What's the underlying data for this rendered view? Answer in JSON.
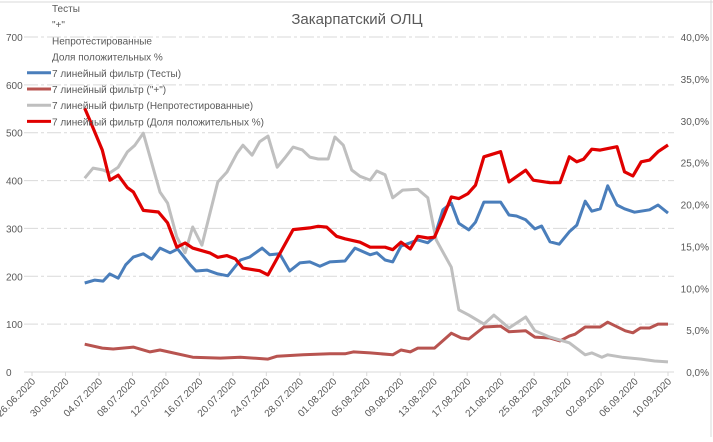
{
  "chart_data": {
    "type": "line",
    "title": "Закарпатский ОЛЦ",
    "x_unit": "days since 26.06.2020",
    "xlabel": "",
    "ylabel": "",
    "ylim": [
      0,
      700
    ],
    "y2lim": [
      0,
      40
    ],
    "y_ticks": [
      "0",
      "100",
      "200",
      "300",
      "400",
      "500",
      "600",
      "700"
    ],
    "y2_ticks": [
      "0,0%",
      "5,0%",
      "10,0%",
      "15,0%",
      "20,0%",
      "25,0%",
      "30,0%",
      "35,0%",
      "40,0%"
    ],
    "x_ticks": [
      "26.06.2020",
      "30.06.2020",
      "04.07.2020",
      "08.07.2020",
      "12.07.2020",
      "16.07.2020",
      "20.07.2020",
      "24.07.2020",
      "28.07.2020",
      "01.08.2020",
      "05.08.2020",
      "09.08.2020",
      "13.08.2020",
      "17.08.2020",
      "21.08.2020",
      "25.08.2020",
      "29.08.2020",
      "02.09.2020",
      "06.09.2020",
      "10.09.2020"
    ],
    "grid": true,
    "legend_position": "top-left",
    "legend": [
      {
        "label": "Тесты",
        "color": ""
      },
      {
        "label": "\"+\"",
        "color": ""
      },
      {
        "label": "Непротестированные",
        "color": ""
      },
      {
        "label": "Доля положительных %",
        "color": ""
      },
      {
        "label": "7 линейный фильтр (Тесты)",
        "color": "#4a7ebb"
      },
      {
        "label": "7 линейный фильтр (\"+\")",
        "color": "#b85450"
      },
      {
        "label": "7 линейный фильтр (Непротестированные)",
        "color": "#bfbfbf"
      },
      {
        "label": "7 линейный фильтр (Доля положительных %)",
        "color": "#e00000"
      }
    ],
    "series": [
      {
        "name": "7 линейный фильтр (Тесты)",
        "axis": "left",
        "color": "#4a7ebb",
        "points": [
          [
            6.3,
            186
          ],
          [
            7.5,
            192
          ],
          [
            8.5,
            190
          ],
          [
            9.3,
            205
          ],
          [
            10.3,
            196
          ],
          [
            11.2,
            224
          ],
          [
            12.1,
            240
          ],
          [
            13.3,
            247
          ],
          [
            14.3,
            236
          ],
          [
            15.3,
            259
          ],
          [
            16.5,
            249
          ],
          [
            17.4,
            257
          ],
          [
            18.9,
            224
          ],
          [
            19.6,
            211
          ],
          [
            20.9,
            213
          ],
          [
            22.2,
            205
          ],
          [
            23.4,
            201
          ],
          [
            24.9,
            234
          ],
          [
            26.0,
            240
          ],
          [
            27.5,
            259
          ],
          [
            28.4,
            245
          ],
          [
            29.6,
            247
          ],
          [
            30.8,
            211
          ],
          [
            32.0,
            228
          ],
          [
            33.2,
            230
          ],
          [
            34.4,
            221
          ],
          [
            35.6,
            230
          ],
          [
            37.4,
            232
          ],
          [
            38.6,
            259
          ],
          [
            40.4,
            245
          ],
          [
            41.2,
            249
          ],
          [
            42.2,
            234
          ],
          [
            43.1,
            230
          ],
          [
            44.1,
            263
          ],
          [
            45.2,
            270
          ],
          [
            46.1,
            276
          ],
          [
            47.3,
            270
          ],
          [
            48.1,
            282
          ],
          [
            49.1,
            339
          ],
          [
            50.1,
            353
          ],
          [
            51.0,
            311
          ],
          [
            52.2,
            297
          ],
          [
            53.0,
            313
          ],
          [
            54.0,
            355
          ],
          [
            56.0,
            355
          ],
          [
            57.0,
            328
          ],
          [
            57.9,
            326
          ],
          [
            59.0,
            318
          ],
          [
            60.1,
            299
          ],
          [
            60.9,
            305
          ],
          [
            61.9,
            272
          ],
          [
            63.0,
            267
          ],
          [
            64.2,
            293
          ],
          [
            65.1,
            307
          ],
          [
            66.1,
            357
          ],
          [
            66.9,
            336
          ],
          [
            67.9,
            341
          ],
          [
            68.8,
            389
          ],
          [
            69.9,
            349
          ],
          [
            70.8,
            341
          ],
          [
            72.0,
            334
          ],
          [
            73.8,
            339
          ],
          [
            74.8,
            349
          ],
          [
            76.0,
            332
          ]
        ]
      },
      {
        "name": "7 линейный фильтр (\"+\")",
        "axis": "left",
        "color": "#b85450",
        "points": [
          [
            6.3,
            58
          ],
          [
            8.4,
            50
          ],
          [
            9.7,
            48
          ],
          [
            12.1,
            52
          ],
          [
            14.1,
            42
          ],
          [
            15.3,
            46
          ],
          [
            19.2,
            31
          ],
          [
            22.5,
            29
          ],
          [
            24.9,
            31
          ],
          [
            28.2,
            27
          ],
          [
            29.3,
            33
          ],
          [
            32.4,
            36
          ],
          [
            35.6,
            38
          ],
          [
            37.4,
            38
          ],
          [
            38.4,
            42
          ],
          [
            40.4,
            40
          ],
          [
            43.1,
            36
          ],
          [
            44.1,
            46
          ],
          [
            45.2,
            42
          ],
          [
            46.1,
            50
          ],
          [
            48.1,
            50
          ],
          [
            50.1,
            81
          ],
          [
            51.3,
            71
          ],
          [
            52.2,
            69
          ],
          [
            54.0,
            94
          ],
          [
            56.0,
            96
          ],
          [
            57.0,
            84
          ],
          [
            59.0,
            86
          ],
          [
            60.1,
            73
          ],
          [
            61.9,
            71
          ],
          [
            63.1,
            65
          ],
          [
            64.2,
            75
          ],
          [
            64.9,
            79
          ],
          [
            66.1,
            94
          ],
          [
            67.9,
            94
          ],
          [
            68.8,
            104
          ],
          [
            70.9,
            86
          ],
          [
            71.8,
            82
          ],
          [
            72.7,
            92
          ],
          [
            73.8,
            92
          ],
          [
            74.8,
            100
          ],
          [
            76.0,
            100
          ]
        ]
      },
      {
        "name": "7 линейный фильтр (Непротестированные)",
        "axis": "left",
        "color": "#bfbfbf",
        "points": [
          [
            6.3,
            405
          ],
          [
            7.3,
            426
          ],
          [
            8.5,
            422
          ],
          [
            9.3,
            416
          ],
          [
            10.3,
            428
          ],
          [
            11.4,
            460
          ],
          [
            12.3,
            474
          ],
          [
            13.3,
            499
          ],
          [
            14.3,
            437
          ],
          [
            15.3,
            376
          ],
          [
            16.2,
            353
          ],
          [
            17.3,
            282
          ],
          [
            18.3,
            249
          ],
          [
            19.2,
            303
          ],
          [
            20.3,
            265
          ],
          [
            22.2,
            397
          ],
          [
            23.3,
            418
          ],
          [
            24.5,
            457
          ],
          [
            25.2,
            474
          ],
          [
            26.3,
            453
          ],
          [
            27.2,
            481
          ],
          [
            28.2,
            493
          ],
          [
            29.3,
            428
          ],
          [
            30.2,
            447
          ],
          [
            31.2,
            470
          ],
          [
            32.3,
            464
          ],
          [
            33.2,
            449
          ],
          [
            34.2,
            445
          ],
          [
            35.4,
            445
          ],
          [
            36.2,
            491
          ],
          [
            37.2,
            474
          ],
          [
            38.2,
            422
          ],
          [
            39.2,
            409
          ],
          [
            40.4,
            401
          ],
          [
            41.2,
            420
          ],
          [
            42.2,
            412
          ],
          [
            43.1,
            364
          ],
          [
            44.3,
            380
          ],
          [
            46.1,
            382
          ],
          [
            47.3,
            364
          ],
          [
            48.3,
            276
          ],
          [
            50.1,
            219
          ],
          [
            51.0,
            130
          ],
          [
            52.2,
            119
          ],
          [
            54.0,
            100
          ],
          [
            55.2,
            119
          ],
          [
            57.0,
            92
          ],
          [
            59.0,
            115
          ],
          [
            60.1,
            86
          ],
          [
            61.9,
            73
          ],
          [
            64.2,
            61
          ],
          [
            66.1,
            36
          ],
          [
            66.9,
            40
          ],
          [
            68.1,
            31
          ],
          [
            68.8,
            36
          ],
          [
            70.5,
            31
          ],
          [
            72.8,
            27
          ],
          [
            74.4,
            23
          ],
          [
            76.0,
            21
          ]
        ]
      },
      {
        "name": "7 линейный фильтр (Доля положительных %)",
        "axis": "right",
        "color": "#e00000",
        "points": [
          [
            6.3,
            31.5
          ],
          [
            6.9,
            30.1
          ],
          [
            8.4,
            26.5
          ],
          [
            9.3,
            22.9
          ],
          [
            10.3,
            23.5
          ],
          [
            11.4,
            22.0
          ],
          [
            12.1,
            21.5
          ],
          [
            13.3,
            19.3
          ],
          [
            15.1,
            19.1
          ],
          [
            16.2,
            17.8
          ],
          [
            17.3,
            14.9
          ],
          [
            18.3,
            15.4
          ],
          [
            19.2,
            14.8
          ],
          [
            21.3,
            14.2
          ],
          [
            22.2,
            13.7
          ],
          [
            23.3,
            13.9
          ],
          [
            24.3,
            13.5
          ],
          [
            25.2,
            12.4
          ],
          [
            27.2,
            12.1
          ],
          [
            28.2,
            11.6
          ],
          [
            31.2,
            17.0
          ],
          [
            33.2,
            17.2
          ],
          [
            34.2,
            17.4
          ],
          [
            35.2,
            17.3
          ],
          [
            36.4,
            16.2
          ],
          [
            37.4,
            15.9
          ],
          [
            39.2,
            15.5
          ],
          [
            40.4,
            14.9
          ],
          [
            42.2,
            14.9
          ],
          [
            43.1,
            14.6
          ],
          [
            44.1,
            15.5
          ],
          [
            45.2,
            14.7
          ],
          [
            46.1,
            16.2
          ],
          [
            47.3,
            16.0
          ],
          [
            48.1,
            16.1
          ],
          [
            49.1,
            18.4
          ],
          [
            50.1,
            20.9
          ],
          [
            51.0,
            20.7
          ],
          [
            52.1,
            21.3
          ],
          [
            53.0,
            22.3
          ],
          [
            54.0,
            25.7
          ],
          [
            56.0,
            26.3
          ],
          [
            57.0,
            22.7
          ],
          [
            59.0,
            24.1
          ],
          [
            59.9,
            22.9
          ],
          [
            61.9,
            22.6
          ],
          [
            63.1,
            22.6
          ],
          [
            64.2,
            25.7
          ],
          [
            65.1,
            25.1
          ],
          [
            65.9,
            25.4
          ],
          [
            66.9,
            26.6
          ],
          [
            67.9,
            26.5
          ],
          [
            69.9,
            26.9
          ],
          [
            70.8,
            23.9
          ],
          [
            71.8,
            23.4
          ],
          [
            72.8,
            25.1
          ],
          [
            73.8,
            25.3
          ],
          [
            74.8,
            26.3
          ],
          [
            76.0,
            27.1
          ]
        ]
      }
    ]
  }
}
